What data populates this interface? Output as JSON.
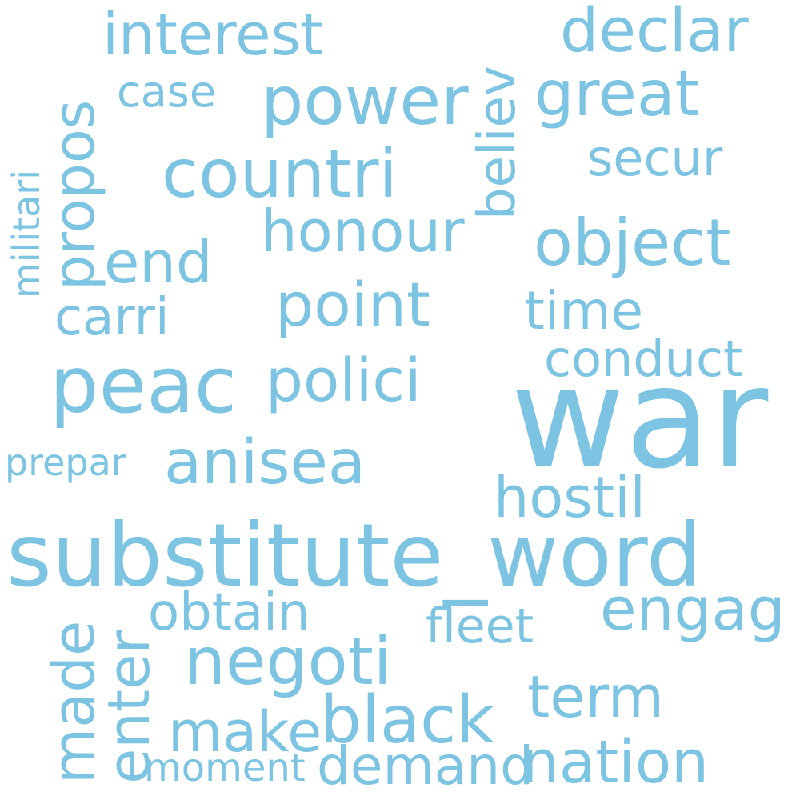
{
  "color": "#7cc4e2",
  "words": [
    {
      "name": "war",
      "text": "war"
    },
    {
      "name": "substitute_word",
      "text": "substitute_word"
    },
    {
      "name": "peac",
      "text": "peac"
    },
    {
      "name": "countri",
      "text": "countri"
    },
    {
      "name": "power",
      "text": "power"
    },
    {
      "name": "interest",
      "text": "interest"
    },
    {
      "name": "declar",
      "text": "declar"
    },
    {
      "name": "great",
      "text": "great"
    },
    {
      "name": "object",
      "text": "object"
    },
    {
      "name": "secur",
      "text": "secur"
    },
    {
      "name": "honour",
      "text": "honour"
    },
    {
      "name": "point",
      "text": "point"
    },
    {
      "name": "polici",
      "text": "polici"
    },
    {
      "name": "time",
      "text": "time"
    },
    {
      "name": "conduct",
      "text": "conduct"
    },
    {
      "name": "anisea",
      "text": "anisea"
    },
    {
      "name": "hostil",
      "text": "hostil"
    },
    {
      "name": "negoti",
      "text": "negoti"
    },
    {
      "name": "engag",
      "text": "engag"
    },
    {
      "name": "obtain",
      "text": "obtain"
    },
    {
      "name": "fleet",
      "text": "fleet"
    },
    {
      "name": "term",
      "text": "term"
    },
    {
      "name": "make",
      "text": "make"
    },
    {
      "name": "black",
      "text": "black"
    },
    {
      "name": "nation",
      "text": "nation"
    },
    {
      "name": "demand",
      "text": "demand"
    },
    {
      "name": "moment",
      "text": "moment"
    },
    {
      "name": "carri",
      "text": "carri"
    },
    {
      "name": "end",
      "text": "end"
    },
    {
      "name": "case",
      "text": "case"
    },
    {
      "name": "prepar",
      "text": "prepar"
    },
    {
      "name": "propos",
      "text": "propos"
    },
    {
      "name": "believ",
      "text": "believ"
    },
    {
      "name": "militari",
      "text": "militari"
    },
    {
      "name": "made",
      "text": "made"
    },
    {
      "name": "enter",
      "text": "enter"
    }
  ]
}
